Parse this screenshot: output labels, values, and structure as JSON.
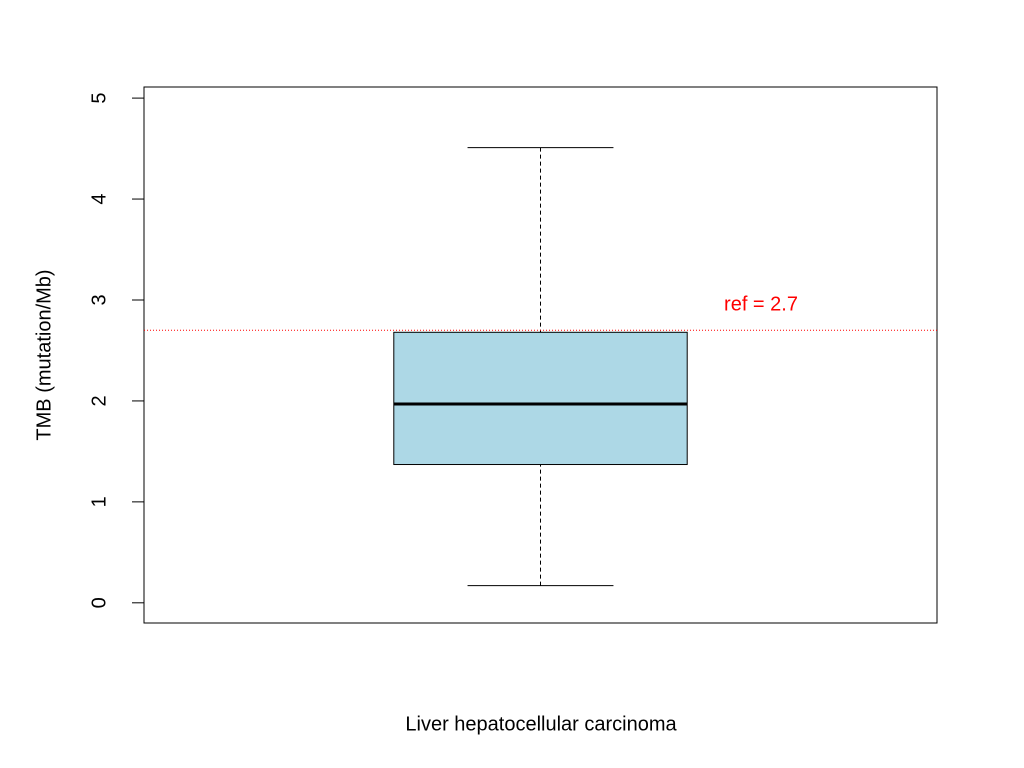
{
  "chart_data": {
    "type": "box",
    "x_label": "Liver hepatocellular carcinoma",
    "y_label": "TMB (mutation/Mb)",
    "boxes": [
      {
        "whislo": 0.17,
        "q1": 1.37,
        "median": 1.97,
        "q3": 2.68,
        "whishi": 4.51
      }
    ],
    "color": "#add8e6",
    "ylim": [
      -0.2,
      5.11
    ],
    "yticks": [
      0,
      1,
      2,
      3,
      4,
      5
    ],
    "ref_line": {
      "value": 2.7,
      "label": "ref = 2.7",
      "color": "#ff0000"
    }
  }
}
